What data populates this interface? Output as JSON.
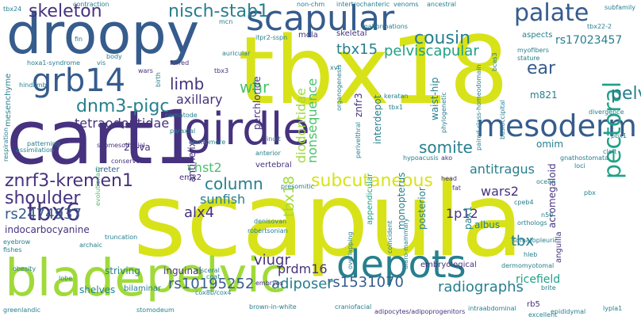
{
  "palette": {
    "background": "#ffffff",
    "yellow": "#d8e219",
    "lime": "#a0da39",
    "green": "#4ac16d",
    "teal_green": "#1fa187",
    "teal": "#277f8e",
    "blue": "#365c8d",
    "indigo": "#46327e",
    "purple": "#440154"
  },
  "words": [
    {
      "text": "scapula",
      "color": "yellow",
      "size": 128
    },
    {
      "text": "tbx18",
      "color": "yellow",
      "size": 118
    },
    {
      "text": "cart1",
      "color": "indigo",
      "size": 94
    },
    {
      "text": "droopy",
      "color": "blue",
      "size": 70
    },
    {
      "text": "blade",
      "color": "lime",
      "size": 64
    },
    {
      "text": "pelvic",
      "color": "lime",
      "size": 60
    },
    {
      "text": "girdle",
      "color": "indigo",
      "size": 56
    },
    {
      "text": "depots",
      "color": "teal",
      "size": 48
    },
    {
      "text": "scapular",
      "color": "blue",
      "size": 44
    },
    {
      "text": "grb14",
      "color": "blue",
      "size": 40
    },
    {
      "text": "mesoderm",
      "color": "blue",
      "size": 38
    },
    {
      "text": "palate",
      "color": "blue",
      "size": 30
    },
    {
      "text": "pectoral",
      "color": "teal_green",
      "size": 30
    },
    {
      "text": "tbx6",
      "color": "indigo",
      "size": 30
    },
    {
      "text": "dnm3-pigc",
      "color": "teal",
      "size": 22
    },
    {
      "text": "nisch-stab1",
      "color": "teal",
      "size": 22
    },
    {
      "text": "skeleton",
      "color": "indigo",
      "size": 22
    },
    {
      "text": "subcutaneous",
      "color": "yellow",
      "size": 22
    },
    {
      "text": "cousin",
      "color": "teal",
      "size": 22
    },
    {
      "text": "znrf3-kremen1",
      "color": "indigo",
      "size": 22
    },
    {
      "text": "shoulder",
      "color": "indigo",
      "size": 22
    },
    {
      "text": "ear",
      "color": "blue",
      "size": 22
    },
    {
      "text": "pelvis",
      "color": "teal",
      "size": 22
    },
    {
      "text": "column",
      "color": "teal",
      "size": 20
    },
    {
      "text": "somite",
      "color": "teal",
      "size": 20
    },
    {
      "text": "limb",
      "color": "indigo",
      "size": 20
    },
    {
      "text": "whr",
      "color": "green",
      "size": 20
    },
    {
      "text": "tbx15",
      "color": "teal",
      "size": 18
    },
    {
      "text": "pelviscapular",
      "color": "teal_green",
      "size": 18
    },
    {
      "text": "alx4",
      "color": "indigo",
      "size": 18
    },
    {
      "text": "rs2474937",
      "color": "blue",
      "size": 18
    },
    {
      "text": "rs10195252",
      "color": "blue",
      "size": 18
    },
    {
      "text": "rs1531070",
      "color": "blue",
      "size": 18
    },
    {
      "text": "adiposer",
      "color": "teal",
      "size": 18
    },
    {
      "text": "radiographs",
      "color": "teal",
      "size": 18
    },
    {
      "text": "viugr",
      "color": "indigo",
      "size": 18
    },
    {
      "text": "tbx",
      "color": "teal",
      "size": 18
    },
    {
      "text": "tbx18",
      "color": "lime",
      "size": 18
    },
    {
      "text": "diodontidae",
      "color": "lime",
      "size": 16
    },
    {
      "text": "nonsequence",
      "color": "green",
      "size": 16
    },
    {
      "text": "antitragus",
      "color": "teal",
      "size": 16
    },
    {
      "text": "axillary",
      "color": "indigo",
      "size": 16
    },
    {
      "text": "tetraodontidae",
      "color": "indigo",
      "size": 16
    },
    {
      "text": "chst2",
      "color": "green",
      "size": 16
    },
    {
      "text": "wars2",
      "color": "indigo",
      "size": 16
    },
    {
      "text": "1p12",
      "color": "indigo",
      "size": 16
    },
    {
      "text": "sunfish",
      "color": "teal",
      "size": 16
    },
    {
      "text": "prdm16",
      "color": "indigo",
      "size": 16
    },
    {
      "text": "ricefield",
      "color": "teal_green",
      "size": 14
    },
    {
      "text": "rs17023457",
      "color": "teal",
      "size": 14
    },
    {
      "text": "m821",
      "color": "teal",
      "size": 12
    },
    {
      "text": "omim",
      "color": "teal",
      "size": 12
    },
    {
      "text": "waist-hip",
      "color": "teal",
      "size": 12
    },
    {
      "text": "interdepot",
      "color": "teal",
      "size": 12
    },
    {
      "text": "znfr3",
      "color": "indigo",
      "size": 12
    },
    {
      "text": "perchloride",
      "color": "indigo",
      "size": 12
    },
    {
      "text": "antihelix",
      "color": "indigo",
      "size": 12
    },
    {
      "text": "monopterus",
      "color": "teal",
      "size": 12
    },
    {
      "text": "posterior",
      "color": "teal",
      "size": 12
    },
    {
      "text": "albus",
      "color": "teal",
      "size": 12
    },
    {
      "text": "pax1",
      "color": "teal",
      "size": 12
    },
    {
      "text": "acromegaloid",
      "color": "indigo",
      "size": 12
    },
    {
      "text": "anguilla",
      "color": "indigo",
      "size": 10
    },
    {
      "text": "rb5",
      "color": "indigo",
      "size": 10
    },
    {
      "text": "striving",
      "color": "teal",
      "size": 12
    },
    {
      "text": "shelves",
      "color": "teal",
      "size": 12
    },
    {
      "text": "bilaminar",
      "color": "teal",
      "size": 10
    },
    {
      "text": "inguinal",
      "color": "indigo",
      "size": 12
    },
    {
      "text": "indocarbocyanine",
      "color": "indigo",
      "size": 12
    },
    {
      "text": "20-va",
      "color": "indigo",
      "size": 12
    },
    {
      "text": "emx2",
      "color": "indigo",
      "size": 10
    },
    {
      "text": "ureter",
      "color": "blue",
      "size": 10
    },
    {
      "text": "skeletal",
      "color": "indigo",
      "size": 10
    },
    {
      "text": "vertebral",
      "color": "indigo",
      "size": 10
    },
    {
      "text": "mola",
      "color": "indigo",
      "size": 10
    },
    {
      "text": "embryological",
      "color": "indigo",
      "size": 10
    },
    {
      "text": "appendicular",
      "color": "teal_green",
      "size": 10
    },
    {
      "text": "aspects",
      "color": "teal",
      "size": 10
    },
    {
      "text": "mesenchyme",
      "color": "teal",
      "size": 10
    },
    {
      "text": "submesothelial",
      "color": "indigo",
      "size": 8
    },
    {
      "text": "conserved",
      "color": "indigo",
      "size": 8
    },
    {
      "text": "hindlimb",
      "color": "teal",
      "size": 8
    },
    {
      "text": "patterning",
      "color": "teal",
      "size": 8
    },
    {
      "text": "assimilation",
      "color": "teal",
      "size": 8
    },
    {
      "text": "wars",
      "color": "indigo",
      "size": 8
    },
    {
      "text": "furred",
      "color": "indigo",
      "size": 8
    },
    {
      "text": "tbx3",
      "color": "indigo",
      "size": 8
    },
    {
      "text": "hoxa1-syndrome",
      "color": "teal",
      "size": 8
    },
    {
      "text": "respiration",
      "color": "teal",
      "size": 8
    },
    {
      "text": "evolutionary",
      "color": "green",
      "size": 8
    },
    {
      "text": "archaic",
      "color": "teal",
      "size": 8
    },
    {
      "text": "obesity",
      "color": "teal",
      "size": 8
    },
    {
      "text": "lobe",
      "color": "teal",
      "size": 8
    },
    {
      "text": "fishes",
      "color": "teal",
      "size": 8
    },
    {
      "text": "eyebrow",
      "color": "teal",
      "size": 8
    },
    {
      "text": "greenlandic",
      "color": "teal",
      "size": 8
    },
    {
      "text": "stomodeum",
      "color": "teal",
      "size": 8
    },
    {
      "text": "brown-in-white",
      "color": "teal",
      "size": 8
    },
    {
      "text": "craniofacial",
      "color": "teal",
      "size": 8
    },
    {
      "text": "adipocytes/adipoprogenitors",
      "color": "indigo",
      "size": 8
    },
    {
      "text": "intraabdominal",
      "color": "teal",
      "size": 8
    },
    {
      "text": "embryos",
      "color": "indigo",
      "size": 8
    },
    {
      "text": "cox8b/cox4",
      "color": "teal",
      "size": 8
    },
    {
      "text": "visceral",
      "color": "teal",
      "size": 8
    },
    {
      "text": "coat",
      "color": "teal",
      "size": 8
    },
    {
      "text": "truncation",
      "color": "teal",
      "size": 8
    },
    {
      "text": "robertsonian",
      "color": "teal",
      "size": 8
    },
    {
      "text": "denisovan",
      "color": "teal",
      "size": 8
    },
    {
      "text": "dermomyotomal",
      "color": "teal",
      "size": 8
    },
    {
      "text": "hleb",
      "color": "teal",
      "size": 8
    },
    {
      "text": "somatopleuric",
      "color": "teal",
      "size": 8
    },
    {
      "text": "orthologs",
      "color": "teal",
      "size": 8
    },
    {
      "text": "n50",
      "color": "teal",
      "size": 8
    },
    {
      "text": "pbx",
      "color": "teal",
      "size": 8
    },
    {
      "text": "cpeb4",
      "color": "teal",
      "size": 8
    },
    {
      "text": "ocean",
      "color": "teal",
      "size": 8
    },
    {
      "text": "gnathostomata",
      "color": "teal",
      "size": 8
    },
    {
      "text": "loci",
      "color": "teal",
      "size": 8
    },
    {
      "text": "cleft",
      "color": "teal",
      "size": 8
    },
    {
      "text": "pbx1",
      "color": "teal",
      "size": 8
    },
    {
      "text": "divergence",
      "color": "teal",
      "size": 8
    },
    {
      "text": "ako",
      "color": "indigo",
      "size": 8
    },
    {
      "text": "head",
      "color": "indigo",
      "size": 8
    },
    {
      "text": "fat",
      "color": "indigo",
      "size": 8
    },
    {
      "text": "hypoacusis",
      "color": "teal",
      "size": 8
    },
    {
      "text": "anterior",
      "color": "teal",
      "size": 8
    },
    {
      "text": "inuit",
      "color": "teal",
      "size": 8
    },
    {
      "text": "centromere",
      "color": "teal",
      "size": 8
    },
    {
      "text": "paraxial",
      "color": "teal",
      "size": 8
    },
    {
      "text": "nematode",
      "color": "teal",
      "size": 8
    },
    {
      "text": "birth",
      "color": "teal",
      "size": 8
    },
    {
      "text": "body",
      "color": "teal",
      "size": 8
    },
    {
      "text": "vis",
      "color": "teal",
      "size": 8
    },
    {
      "text": "fin",
      "color": "teal",
      "size": 8
    },
    {
      "text": "contraction",
      "color": "teal",
      "size": 8
    },
    {
      "text": "non-chm",
      "color": "teal",
      "size": 8
    },
    {
      "text": "intertrochanteric",
      "color": "teal",
      "size": 8
    },
    {
      "text": "venoms",
      "color": "teal",
      "size": 8
    },
    {
      "text": "ancestral",
      "color": "teal",
      "size": 8
    },
    {
      "text": "subfamily",
      "color": "teal",
      "size": 8
    },
    {
      "text": "malformations",
      "color": "teal",
      "size": 8
    },
    {
      "text": "itpr2-sspn",
      "color": "teal",
      "size": 8
    },
    {
      "text": "mcn",
      "color": "teal",
      "size": 8
    },
    {
      "text": "auricular",
      "color": "teal",
      "size": 8
    },
    {
      "text": "myofibers",
      "color": "teal",
      "size": 8
    },
    {
      "text": "stature",
      "color": "teal",
      "size": 8
    },
    {
      "text": "brite",
      "color": "teal",
      "size": 8
    },
    {
      "text": "epididymal",
      "color": "teal",
      "size": 8
    },
    {
      "text": "lypla1",
      "color": "teal",
      "size": 8
    },
    {
      "text": "excellent",
      "color": "teal",
      "size": 8
    },
    {
      "text": "tbx22-2",
      "color": "teal",
      "size": 8
    },
    {
      "text": "tbx24",
      "color": "teal",
      "size": 8
    },
    {
      "text": "xvi",
      "color": "teal",
      "size": 8
    },
    {
      "text": "tbx1",
      "color": "teal",
      "size": 8
    },
    {
      "text": "keratan",
      "color": "teal",
      "size": 8
    },
    {
      "text": "bcas3",
      "color": "teal",
      "size": 8
    },
    {
      "text": "organogenesis",
      "color": "teal",
      "size": 8
    },
    {
      "text": "phylogenetic",
      "color": "teal",
      "size": 8
    },
    {
      "text": "paired-class-homeodomain",
      "color": "teal",
      "size": 8
    },
    {
      "text": "basioccipital",
      "color": "teal",
      "size": 8
    },
    {
      "text": "ularo-mammary",
      "color": "teal",
      "size": 8
    },
    {
      "text": "coincident",
      "color": "teal",
      "size": 8
    },
    {
      "text": "overlapping",
      "color": "teal",
      "size": 8
    },
    {
      "text": "perivelthral",
      "color": "teal",
      "size": 8
    },
    {
      "text": "presomitic",
      "color": "teal",
      "size": 8
    },
    {
      "text": "ussumur-d",
      "color": "teal",
      "size": 8
    },
    {
      "text": "flp1p13",
      "color": "teal",
      "size": 8
    },
    {
      "text": "sp",
      "color": "teal",
      "size": 8
    },
    {
      "text": "rsp",
      "color": "teal",
      "size": 8
    },
    {
      "text": "mcn",
      "color": "teal",
      "size": 8
    }
  ]
}
